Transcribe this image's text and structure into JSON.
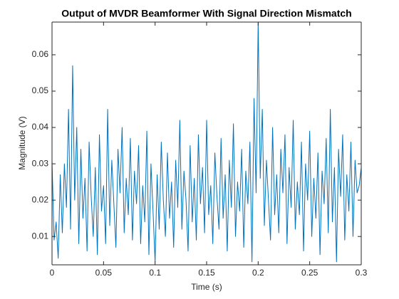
{
  "chart_data": {
    "type": "line",
    "title": "Output of MVDR Beamformer With Signal Direction Mismatch",
    "x_label": "Time (s)",
    "y_label": "Magnitude (V)",
    "xlim": [
      0,
      0.3
    ],
    "ylim": [
      0.0022,
      0.069
    ],
    "xticks": [
      0,
      0.05,
      0.1,
      0.15,
      0.2,
      0.25,
      0.3
    ],
    "yticks": [
      0.01,
      0.02,
      0.03,
      0.04,
      0.05,
      0.06
    ],
    "box": true,
    "x": [
      0,
      0.002,
      0.004,
      0.006,
      0.008,
      0.01,
      0.012,
      0.014,
      0.016,
      0.018,
      0.02,
      0.022,
      0.024,
      0.026,
      0.028,
      0.03,
      0.032,
      0.034,
      0.036,
      0.038,
      0.04,
      0.042,
      0.044,
      0.046,
      0.048,
      0.05,
      0.052,
      0.054,
      0.056,
      0.058,
      0.06,
      0.062,
      0.064,
      0.066,
      0.068,
      0.07,
      0.072,
      0.074,
      0.076,
      0.078,
      0.08,
      0.082,
      0.084,
      0.086,
      0.088,
      0.09,
      0.092,
      0.094,
      0.096,
      0.098,
      0.1,
      0.102,
      0.104,
      0.106,
      0.108,
      0.11,
      0.112,
      0.114,
      0.116,
      0.118,
      0.12,
      0.122,
      0.124,
      0.126,
      0.128,
      0.13,
      0.132,
      0.134,
      0.136,
      0.138,
      0.14,
      0.142,
      0.144,
      0.146,
      0.148,
      0.15,
      0.152,
      0.154,
      0.156,
      0.158,
      0.16,
      0.162,
      0.164,
      0.166,
      0.168,
      0.17,
      0.172,
      0.174,
      0.176,
      0.178,
      0.18,
      0.182,
      0.184,
      0.186,
      0.188,
      0.19,
      0.192,
      0.194,
      0.196,
      0.198,
      0.2,
      0.202,
      0.204,
      0.206,
      0.208,
      0.21,
      0.212,
      0.214,
      0.216,
      0.218,
      0.22,
      0.222,
      0.224,
      0.226,
      0.228,
      0.23,
      0.232,
      0.234,
      0.236,
      0.238,
      0.24,
      0.242,
      0.244,
      0.246,
      0.248,
      0.25,
      0.252,
      0.254,
      0.256,
      0.258,
      0.26,
      0.262,
      0.264,
      0.266,
      0.268,
      0.27,
      0.272,
      0.274,
      0.276,
      0.278,
      0.28,
      0.282,
      0.284,
      0.286,
      0.288,
      0.29,
      0.292,
      0.294,
      0.296,
      0.298,
      0.3
    ],
    "series": [
      {
        "color": "#0072bd",
        "values": [
          0.031,
          0.009,
          0.014,
          0.004,
          0.027,
          0.011,
          0.03,
          0.018,
          0.045,
          0.012,
          0.057,
          0.02,
          0.04,
          0.008,
          0.034,
          0.015,
          0.026,
          0.006,
          0.036,
          0.021,
          0.01,
          0.029,
          0.005,
          0.038,
          0.017,
          0.024,
          0.008,
          0.045,
          0.013,
          0.031,
          0.019,
          0.007,
          0.034,
          0.022,
          0.04,
          0.011,
          0.026,
          0.016,
          0.037,
          0.009,
          0.028,
          0.019,
          0.035,
          0.008,
          0.024,
          0.014,
          0.039,
          0.005,
          0.03,
          0.017,
          0.003,
          0.027,
          0.012,
          0.036,
          0.02,
          0.01,
          0.033,
          0.015,
          0.025,
          0.007,
          0.031,
          0.018,
          0.042,
          0.012,
          0.028,
          0.02,
          0.006,
          0.035,
          0.014,
          0.026,
          0.009,
          0.038,
          0.019,
          0.029,
          0.011,
          0.042,
          0.016,
          0.024,
          0.008,
          0.033,
          0.021,
          0.012,
          0.037,
          0.015,
          0.027,
          0.006,
          0.031,
          0.018,
          0.041,
          0.01,
          0.025,
          0.017,
          0.034,
          0.007,
          0.028,
          0.019,
          0.036,
          0.003,
          0.048,
          0.022,
          0.069,
          0.026,
          0.045,
          0.013,
          0.031,
          0.02,
          0.009,
          0.04,
          0.016,
          0.027,
          0.011,
          0.034,
          0.022,
          0.038,
          0.008,
          0.029,
          0.018,
          0.042,
          0.012,
          0.025,
          0.016,
          0.036,
          0.006,
          0.03,
          0.02,
          0.039,
          0.01,
          0.026,
          0.015,
          0.033,
          0.005,
          0.028,
          0.019,
          0.037,
          0.011,
          0.045,
          0.014,
          0.029,
          0.003,
          0.034,
          0.021,
          0.038,
          0.009,
          0.027,
          0.017,
          0.036,
          0.01,
          0.031,
          0.022,
          0.024,
          0.029
        ]
      }
    ]
  }
}
